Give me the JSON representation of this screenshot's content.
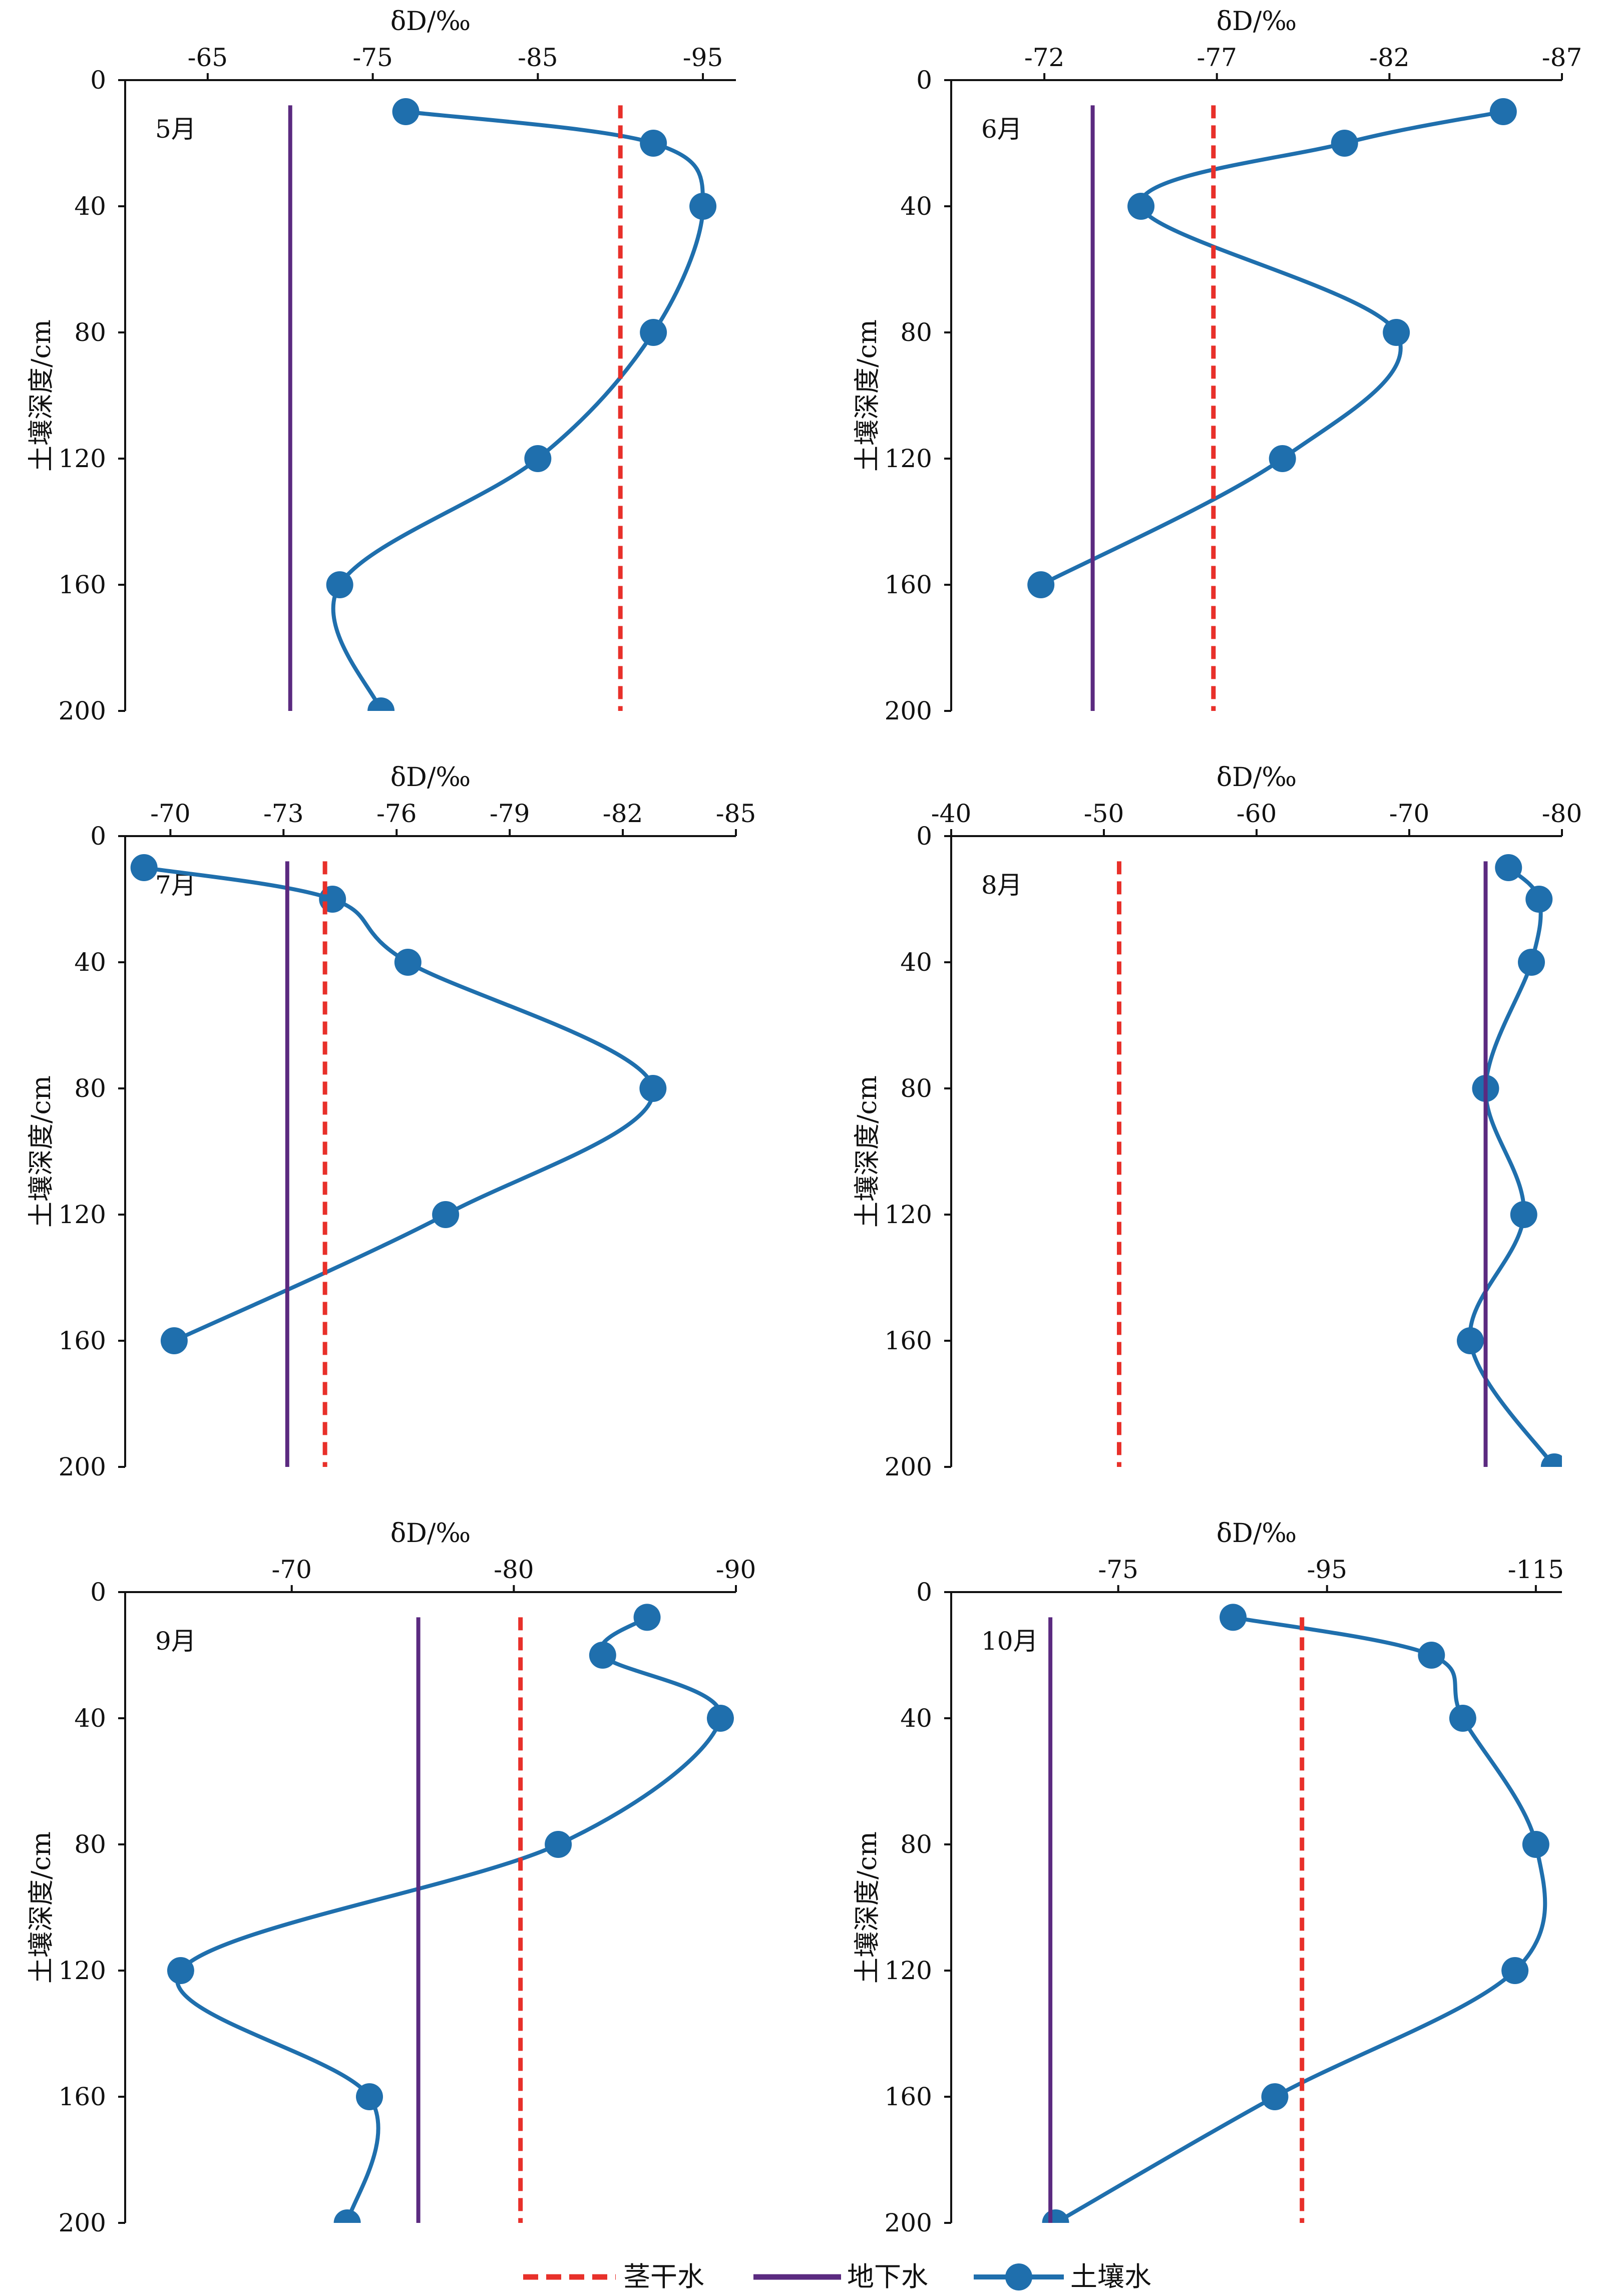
{
  "legend": {
    "stem": {
      "label": "茎干水"
    },
    "ground": {
      "label": "地下水"
    },
    "soil": {
      "label": "土壤水"
    }
  },
  "colors": {
    "stem": "#e8302a",
    "ground": "#5b2a80",
    "soil": "#1f6fad",
    "axis": "#111111"
  },
  "chart_data": [
    {
      "type": "line",
      "panel_label": "5月",
      "title": "",
      "xlabel": "δD/‰",
      "ylabel": "土壤深度/cm",
      "xlim": [
        -60,
        -97
      ],
      "x_ticks": [
        -65,
        -75,
        -85,
        -95
      ],
      "ylim": [
        0,
        200
      ],
      "y_ticks": [
        0,
        40,
        80,
        120,
        160,
        200
      ],
      "y_inverted": true,
      "x_axis_position": "top",
      "grid": false,
      "series": [
        {
          "name": "土壤水",
          "x": [
            -77,
            -92,
            -95,
            -92,
            -85,
            -73,
            -75.5
          ],
          "y": [
            10,
            20,
            40,
            80,
            120,
            160,
            200
          ]
        },
        {
          "name": "茎干水",
          "x": [
            -90,
            -90
          ],
          "y": [
            8,
            200
          ]
        },
        {
          "name": "地下水",
          "x": [
            -70,
            -70
          ],
          "y": [
            8,
            200
          ]
        }
      ]
    },
    {
      "type": "line",
      "panel_label": "6月",
      "title": "",
      "xlabel": "δD/‰",
      "ylabel": "土壤深度/cm",
      "xlim": [
        -69.3,
        -87
      ],
      "x_ticks": [
        -72,
        -77,
        -82,
        -87
      ],
      "ylim": [
        0,
        200
      ],
      "y_ticks": [
        0,
        40,
        80,
        120,
        160,
        200
      ],
      "y_inverted": true,
      "x_axis_position": "top",
      "grid": false,
      "series": [
        {
          "name": "土壤水",
          "x": [
            -85.3,
            -80.7,
            -74.8,
            -82.2,
            -78.9,
            -71.9
          ],
          "y": [
            10,
            20,
            40,
            80,
            120,
            160
          ]
        },
        {
          "name": "茎干水",
          "x": [
            -76.9,
            -76.9
          ],
          "y": [
            8,
            200
          ]
        },
        {
          "name": "地下水",
          "x": [
            -73.4,
            -73.4
          ],
          "y": [
            8,
            200
          ]
        }
      ]
    },
    {
      "type": "line",
      "panel_label": "7月",
      "title": "",
      "xlabel": "δD/‰",
      "ylabel": "土壤深度/cm",
      "xlim": [
        -68.8,
        -85
      ],
      "x_ticks": [
        -70,
        -73,
        -76,
        -79,
        -82,
        -85
      ],
      "ylim": [
        0,
        200
      ],
      "y_ticks": [
        0,
        40,
        80,
        120,
        160,
        200
      ],
      "y_inverted": true,
      "x_axis_position": "top",
      "grid": false,
      "series": [
        {
          "name": "土壤水",
          "x": [
            -69.3,
            -74.3,
            -76.3,
            -82.8,
            -77.3,
            -70.1
          ],
          "y": [
            10,
            20,
            40,
            80,
            120,
            160
          ]
        },
        {
          "name": "茎干水",
          "x": [
            -74.1,
            -74.1
          ],
          "y": [
            8,
            200
          ]
        },
        {
          "name": "地下水",
          "x": [
            -73.1,
            -73.1
          ],
          "y": [
            8,
            200
          ]
        }
      ]
    },
    {
      "type": "line",
      "panel_label": "8月",
      "title": "",
      "xlabel": "δD/‰",
      "ylabel": "土壤深度/cm",
      "xlim": [
        -40,
        -80
      ],
      "x_ticks": [
        -40,
        -50,
        -60,
        -70,
        -80
      ],
      "ylim": [
        0,
        200
      ],
      "y_ticks": [
        0,
        40,
        80,
        120,
        160,
        200
      ],
      "y_inverted": true,
      "x_axis_position": "top",
      "grid": false,
      "series": [
        {
          "name": "土壤水",
          "x": [
            -76.5,
            -78.5,
            -78,
            -75,
            -77.5,
            -74,
            -79.5
          ],
          "y": [
            10,
            20,
            40,
            80,
            120,
            160,
            200
          ]
        },
        {
          "name": "茎干水",
          "x": [
            -51,
            -51
          ],
          "y": [
            8,
            200
          ]
        },
        {
          "name": "地下水",
          "x": [
            -75,
            -75
          ],
          "y": [
            8,
            200
          ]
        }
      ]
    },
    {
      "type": "line",
      "panel_label": "9月",
      "title": "",
      "xlabel": "δD/‰",
      "ylabel": "土壤深度/cm",
      "xlim": [
        -62.5,
        -90
      ],
      "x_ticks": [
        -70,
        -80,
        -90
      ],
      "ylim": [
        0,
        200
      ],
      "y_ticks": [
        0,
        40,
        80,
        120,
        160,
        200
      ],
      "y_inverted": true,
      "x_axis_position": "top",
      "grid": false,
      "series": [
        {
          "name": "土壤水",
          "x": [
            -86,
            -84,
            -89.3,
            -82,
            -65,
            -73.5,
            -72.5
          ],
          "y": [
            8,
            20,
            40,
            80,
            120,
            160,
            200
          ]
        },
        {
          "name": "茎干水",
          "x": [
            -80.3,
            -80.3
          ],
          "y": [
            8,
            200
          ]
        },
        {
          "name": "地下水",
          "x": [
            -75.7,
            -75.7
          ],
          "y": [
            8,
            200
          ]
        }
      ]
    },
    {
      "type": "line",
      "panel_label": "10月",
      "title": "",
      "xlabel": "δD/‰",
      "ylabel": "土壤深度/cm",
      "xlim": [
        -59,
        -117.5
      ],
      "x_ticks": [
        -75,
        -95,
        -115
      ],
      "ylim": [
        0,
        200
      ],
      "y_ticks": [
        0,
        40,
        80,
        120,
        160,
        200
      ],
      "y_inverted": true,
      "x_axis_position": "top",
      "grid": false,
      "series": [
        {
          "name": "土壤水",
          "x": [
            -86,
            -105,
            -108,
            -115,
            -113,
            -90,
            -69
          ],
          "y": [
            8,
            20,
            40,
            80,
            120,
            160,
            200
          ]
        },
        {
          "name": "茎干水",
          "x": [
            -92.6,
            -92.6
          ],
          "y": [
            8,
            200
          ]
        },
        {
          "name": "地下水",
          "x": [
            -68.5,
            -68.5
          ],
          "y": [
            8,
            200
          ]
        }
      ]
    }
  ]
}
